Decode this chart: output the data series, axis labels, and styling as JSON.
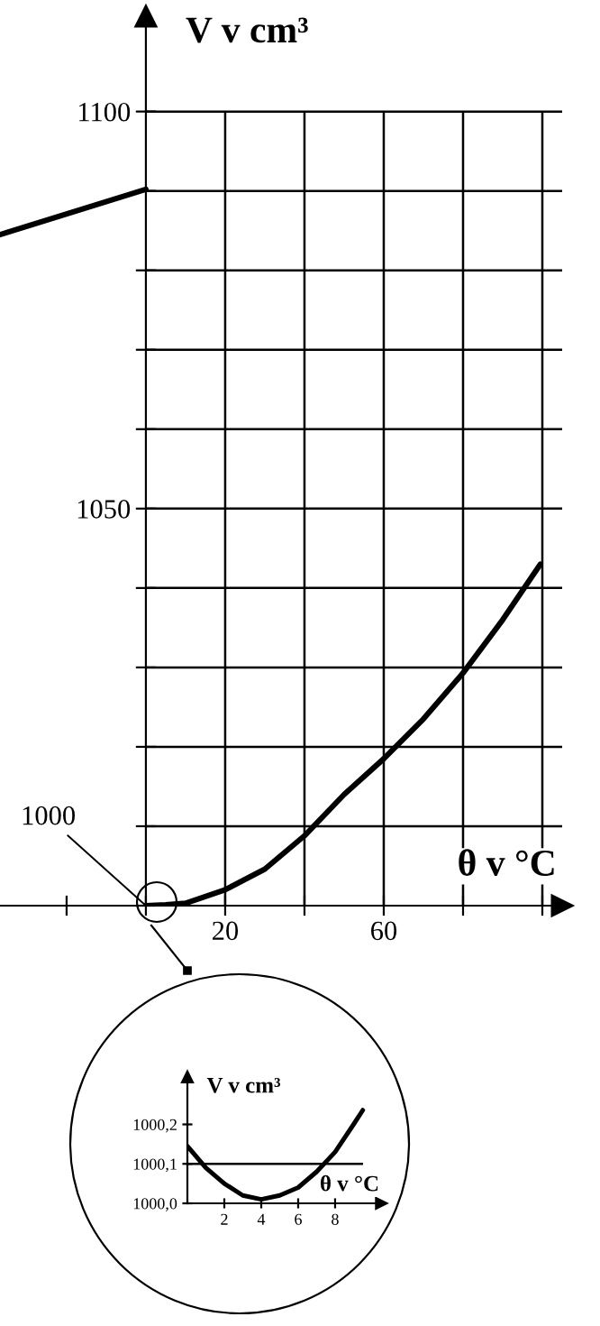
{
  "chart_data": [
    {
      "type": "line",
      "ylabel": "V v cm³",
      "xlabel": "θ v °C",
      "series": [
        {
          "color": "#000000",
          "x": [
            -36.8,
            0
          ],
          "values": [
            1084.5,
            1090.2
          ]
        },
        {
          "color": "#000000",
          "x": [
            0,
            5,
            10,
            20,
            30,
            40,
            50,
            60,
            70,
            80,
            90,
            99.5
          ],
          "values": [
            1000,
            1000.1,
            1000.3,
            1002,
            1004.6,
            1008.8,
            1014,
            1018.5,
            1023.5,
            1029.3,
            1036,
            1043
          ]
        }
      ],
      "xlim": [
        -36.8,
        105
      ],
      "ylim": [
        1000,
        1112
      ],
      "xticks": [
        {
          "value": -20,
          "label": null
        },
        {
          "value": 0,
          "label": null
        },
        20,
        {
          "value": 40,
          "label": null
        },
        60,
        {
          "value": 80,
          "label": null
        },
        {
          "value": 100,
          "label": null
        }
      ],
      "annotations": [
        {
          "text": "1000",
          "x": 0,
          "y": 1000
        }
      ],
      "yticks": [
        {
          "value": 1000,
          "label": null
        },
        {
          "value": 1010,
          "label": null
        },
        {
          "value": 1020,
          "label": null
        },
        {
          "value": 1030,
          "label": null
        },
        {
          "value": 1040,
          "label": null
        },
        1050,
        {
          "value": 1060,
          "label": null
        },
        {
          "value": 1070,
          "label": null
        },
        {
          "value": 1080,
          "label": null
        },
        {
          "value": 1090,
          "label": null
        },
        1100
      ],
      "grid": true,
      "marker": "none",
      "line_style": "solid"
    },
    {
      "type": "line",
      "ylabel": "V v cm³",
      "xlabel": "θ v °C",
      "series": [
        {
          "color": "#000000",
          "x": [
            0,
            1,
            2,
            3,
            4,
            5,
            6,
            7,
            8,
            9,
            9.5
          ],
          "values": [
            1000.145,
            1000.09,
            1000.05,
            1000.02,
            1000.01,
            1000.02,
            1000.04,
            1000.08,
            1000.13,
            1000.2,
            1000.236
          ]
        }
      ],
      "xlim": [
        0,
        10.5
      ],
      "ylim": [
        1000.0,
        1000.32
      ],
      "xticks": [
        2,
        4,
        6,
        8
      ],
      "yticks": [
        {
          "value": 1000.0,
          "label": "1000,0"
        },
        {
          "value": 1000.1,
          "label": "1000,1"
        },
        {
          "value": 1000.2,
          "label": "1000,2"
        }
      ],
      "ref_lines": [
        {
          "axis": "y",
          "value": 1000.1,
          "color": "#000000"
        }
      ],
      "grid": false,
      "marker": "none",
      "line_style": "solid"
    }
  ]
}
